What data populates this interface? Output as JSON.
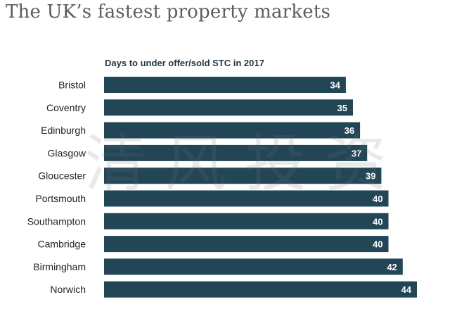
{
  "title": "The UK’s fastest property markets",
  "watermark": "清风投资",
  "colors": {
    "bar": "#234656",
    "bar_label": "#ffffff",
    "title": "#5c5c5c"
  },
  "chart_data": {
    "type": "bar",
    "orientation": "horizontal",
    "title": "Days to under offer/sold STC in 2017",
    "xlabel": "",
    "ylabel": "",
    "categories": [
      "Bristol",
      "Coventry",
      "Edinburgh",
      "Glasgow",
      "Gloucester",
      "Portsmouth",
      "Southampton",
      "Cambridge",
      "Birmingham",
      "Norwich"
    ],
    "values": [
      34,
      35,
      36,
      37,
      39,
      40,
      40,
      40,
      42,
      44
    ],
    "xlim": [
      0,
      44
    ],
    "data_labels": true,
    "grid": false,
    "legend": "none"
  }
}
